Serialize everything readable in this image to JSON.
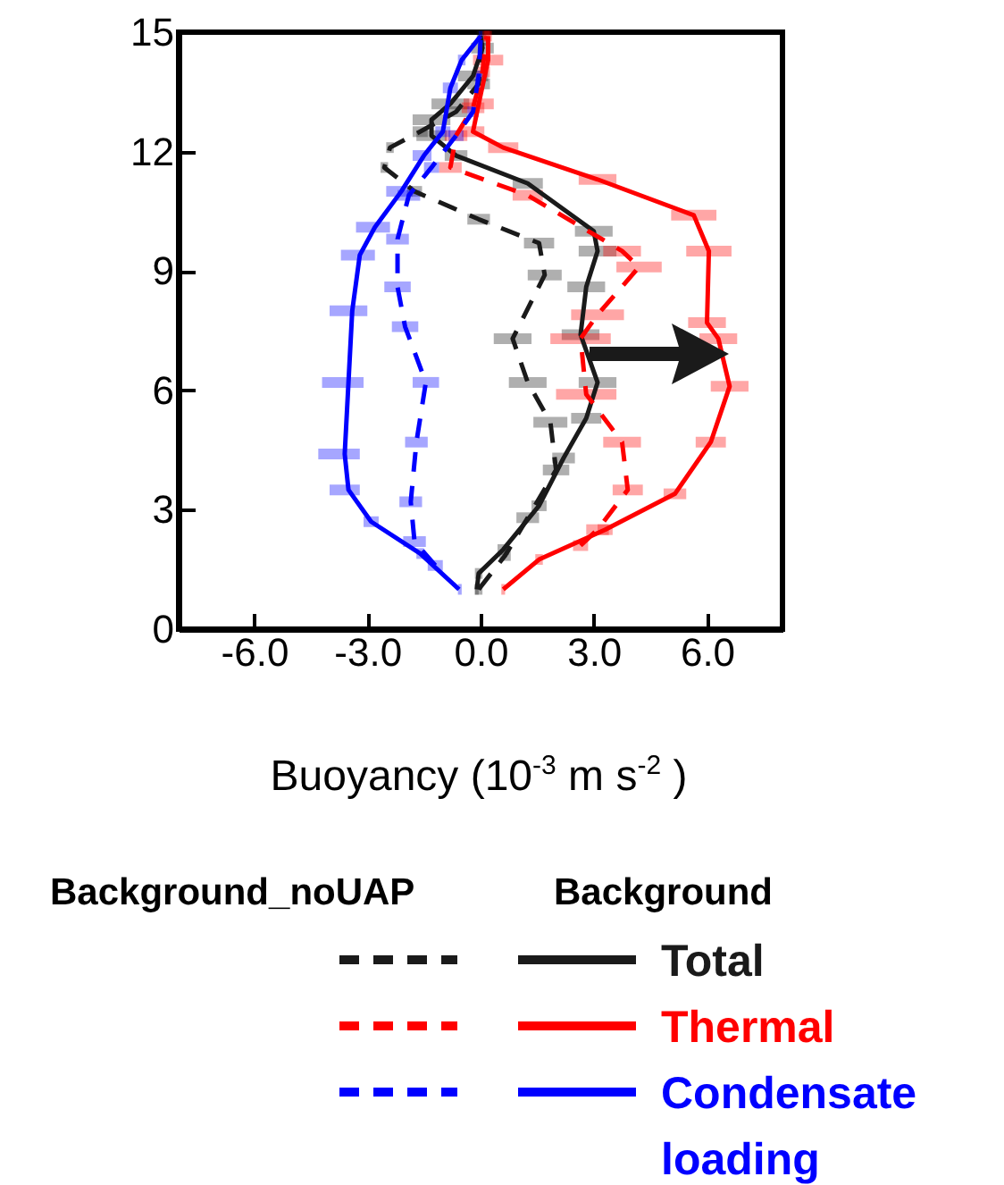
{
  "chart_data": {
    "type": "line",
    "xlabel": "Buoyancy (10$^{-3}$ m s$^{-2}$ )",
    "xlim": [
      -8,
      8
    ],
    "xticks": [
      {
        "value": -6,
        "label": "-6.0"
      },
      {
        "value": -3,
        "label": "-3.0"
      },
      {
        "value": 0,
        "label": "0.0"
      },
      {
        "value": 3,
        "label": "3.0"
      },
      {
        "value": 6,
        "label": "6.0"
      }
    ],
    "ylim": [
      0,
      15
    ],
    "yticks": [
      0,
      3,
      6,
      9,
      12,
      15
    ],
    "grid": false,
    "legend": "bottom",
    "annotations": [
      "Background_noUAP",
      "Background"
    ],
    "series": [
      {
        "color": "#1a1a1a",
        "line_style": "dashed",
        "x": [
          -0.05,
          0.65,
          1.25,
          2.0,
          1.85,
          1.25,
          0.85,
          1.7,
          1.55,
          -0.05,
          -1.75,
          -2.55,
          -2.4,
          -1.6,
          -0.65,
          -0.05,
          0.05
        ],
        "values": [
          1.0,
          1.85,
          2.8,
          4.0,
          5.2,
          6.2,
          7.3,
          8.9,
          9.7,
          10.3,
          11.0,
          11.6,
          12.1,
          12.5,
          13.0,
          13.7,
          14.8
        ],
        "xerrors": [
          [
            -0.15,
            0.05
          ],
          [
            0.5,
            0.8
          ],
          [
            0.95,
            1.55
          ],
          [
            1.65,
            2.35
          ],
          [
            1.4,
            2.3
          ],
          [
            0.75,
            1.75
          ],
          [
            0.35,
            1.35
          ],
          [
            1.25,
            2.15
          ],
          [
            1.15,
            1.95
          ],
          [
            -0.35,
            0.25
          ],
          [
            -1.95,
            -1.55
          ],
          [
            -2.65,
            -2.45
          ],
          [
            -2.5,
            -2.3
          ],
          [
            -1.8,
            -1.4
          ],
          [
            -0.95,
            -0.35
          ],
          [
            -0.35,
            0.25
          ],
          [
            -0.05,
            0.15
          ]
        ]
      },
      {
        "name": "Total",
        "color": "#1a1a1a",
        "line_style": "solid",
        "x": [
          -0.1,
          -0.05,
          0.6,
          1.55,
          2.2,
          2.8,
          3.1,
          2.65,
          2.8,
          3.1,
          3.0,
          1.25,
          -0.65,
          -1.3,
          -1.3,
          -0.8,
          -0.2,
          0.05,
          0
        ],
        "values": [
          1.0,
          1.4,
          2.0,
          3.1,
          4.3,
          5.3,
          6.2,
          7.4,
          8.6,
          9.5,
          10.0,
          11.2,
          11.9,
          12.4,
          12.8,
          13.2,
          13.9,
          14.6,
          14.9
        ],
        "xerrors": [
          [
            -0.15,
            -0.05
          ],
          [
            -0.15,
            0.05
          ],
          [
            0.45,
            0.75
          ],
          [
            1.35,
            1.75
          ],
          [
            1.9,
            2.5
          ],
          [
            2.4,
            3.2
          ],
          [
            2.6,
            3.6
          ],
          [
            2.15,
            3.15
          ],
          [
            2.3,
            3.3
          ],
          [
            2.6,
            3.6
          ],
          [
            2.5,
            3.5
          ],
          [
            0.85,
            1.65
          ],
          [
            -0.95,
            -0.35
          ],
          [
            -1.7,
            -0.9
          ],
          [
            -1.8,
            -0.8
          ],
          [
            -1.3,
            -0.3
          ],
          [
            -0.6,
            0.2
          ],
          [
            -0.25,
            0.35
          ],
          [
            -0.1,
            0.1
          ]
        ]
      },
      {
        "color": "#ff0000",
        "line_style": "dashed",
        "x": [
          2.65,
          3.1,
          3.9,
          3.75,
          2.8,
          2.65,
          3.1,
          4.2,
          3.75,
          1.25,
          -0.8,
          -0.65,
          -0.2,
          0.05,
          0.15
        ],
        "values": [
          2.1,
          2.5,
          3.5,
          4.7,
          5.9,
          7.3,
          7.9,
          9.1,
          9.5,
          10.9,
          11.6,
          12.4,
          13.1,
          14.0,
          14.9
        ],
        "xerrors": [
          [
            2.45,
            2.85
          ],
          [
            2.8,
            3.4
          ],
          [
            3.5,
            4.3
          ],
          [
            3.25,
            4.25
          ],
          [
            2.0,
            3.6
          ],
          [
            1.85,
            3.45
          ],
          [
            2.4,
            3.8
          ],
          [
            3.6,
            4.8
          ],
          [
            3.25,
            4.25
          ],
          [
            0.85,
            1.65
          ],
          [
            -1.1,
            -0.5
          ],
          [
            -0.95,
            -0.35
          ],
          [
            -0.5,
            0.1
          ],
          [
            -0.15,
            0.25
          ],
          [
            0.05,
            0.25
          ]
        ]
      },
      {
        "name": "Thermal",
        "color": "#ff0000",
        "line_style": "solid",
        "x": [
          0.6,
          1.55,
          3.3,
          5.15,
          6.1,
          6.6,
          6.3,
          6.0,
          6.05,
          5.65,
          3.1,
          0.6,
          -0.2,
          -0.05,
          0.2,
          0.2
        ],
        "values": [
          1.0,
          1.75,
          2.5,
          3.4,
          4.7,
          6.1,
          7.3,
          7.7,
          9.5,
          10.4,
          11.3,
          12.1,
          12.5,
          13.2,
          14.3,
          14.9
        ],
        "xerrors": [
          [
            0.55,
            0.65
          ],
          [
            1.45,
            1.65
          ],
          [
            3.1,
            3.5
          ],
          [
            4.85,
            5.45
          ],
          [
            5.7,
            6.5
          ],
          [
            6.1,
            7.1
          ],
          [
            5.8,
            6.8
          ],
          [
            5.5,
            6.5
          ],
          [
            5.45,
            6.65
          ],
          [
            5.05,
            6.25
          ],
          [
            2.6,
            3.6
          ],
          [
            0.2,
            1.0
          ],
          [
            -0.5,
            0.1
          ],
          [
            -0.45,
            0.35
          ],
          [
            -0.2,
            0.6
          ],
          [
            0.1,
            0.3
          ]
        ]
      },
      {
        "color": "#0000ff",
        "line_style": "dashed",
        "x": [
          -1.2,
          -1.75,
          -1.85,
          -1.7,
          -1.45,
          -2.0,
          -2.2,
          -2.2,
          -1.9,
          -1.3,
          -0.65,
          -0.2,
          -0.05,
          0
        ],
        "values": [
          1.6,
          2.2,
          3.2,
          4.7,
          6.2,
          7.6,
          8.6,
          9.8,
          10.9,
          11.6,
          12.4,
          13.0,
          13.9,
          14.8
        ],
        "xerrors": [
          [
            -1.4,
            -1.0
          ],
          [
            -2.05,
            -1.45
          ],
          [
            -2.15,
            -1.55
          ],
          [
            -2.0,
            -1.4
          ],
          [
            -1.8,
            -1.1
          ],
          [
            -2.35,
            -1.65
          ],
          [
            -2.55,
            -1.85
          ],
          [
            -2.5,
            -1.9
          ],
          [
            -2.2,
            -1.6
          ],
          [
            -1.5,
            -1.1
          ],
          [
            -0.85,
            -0.45
          ],
          [
            -0.35,
            -0.05
          ],
          [
            -0.15,
            0.05
          ],
          [
            -0.05,
            0.05
          ]
        ]
      },
      {
        "name": "Condensate loading",
        "color": "#0000ff",
        "line_style": "solid",
        "x": [
          -0.57,
          -1.6,
          -2.9,
          -3.5,
          -3.6,
          -3.5,
          -3.4,
          -3.2,
          -2.8,
          -2.1,
          -1.5,
          -1.0,
          -0.8,
          -0.5,
          0
        ],
        "values": [
          1.0,
          1.9,
          2.7,
          3.5,
          4.4,
          6.2,
          8.0,
          9.4,
          10.1,
          11.0,
          11.9,
          12.5,
          13.6,
          14.3,
          14.9
        ],
        "xerrors": [
          [
            -0.6,
            -0.5
          ],
          [
            -1.7,
            -1.5
          ],
          [
            -3.1,
            -2.7
          ],
          [
            -4.0,
            -3.2
          ],
          [
            -4.3,
            -3.2
          ],
          [
            -4.2,
            -3.1
          ],
          [
            -4.0,
            -3.0
          ],
          [
            -3.7,
            -2.8
          ],
          [
            -3.3,
            -2.4
          ],
          [
            -2.5,
            -1.8
          ],
          [
            -1.8,
            -1.3
          ],
          [
            -1.2,
            -0.8
          ],
          [
            -1.0,
            -0.6
          ],
          [
            -0.6,
            -0.4
          ],
          [
            -0.05,
            0.05
          ]
        ]
      }
    ]
  }
}
